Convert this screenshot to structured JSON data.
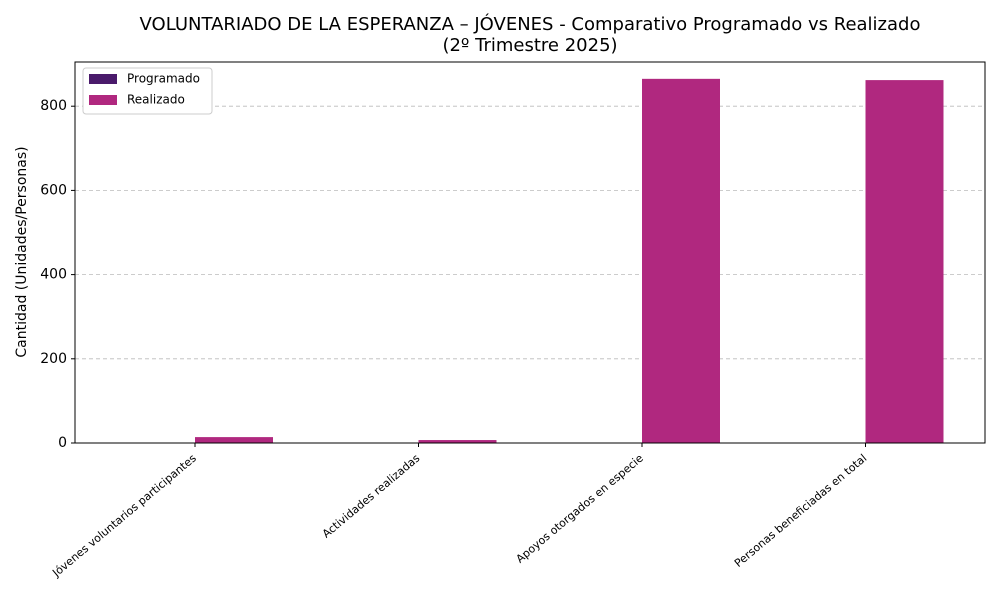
{
  "chart_data": {
    "type": "bar",
    "title": [
      "VOLUNTARIADO DE LA ESPERANZA – JÓVENES - Comparativo Programado vs Realizado",
      "(2º Trimestre 2025)"
    ],
    "y_label": "Cantidad (Unidades/Personas)",
    "categories": [
      "Jóvenes voluntarios participantes",
      "Actividades realizadas",
      "Apoyos otorgados en especie",
      "Personas beneficiadas en total"
    ],
    "series": [
      {
        "name": "Programado",
        "color": "#4a1a6b",
        "values": [
          0,
          0,
          0,
          0
        ]
      },
      {
        "name": "Realizado",
        "color": "#b0287f",
        "values": [
          14,
          7,
          865,
          862
        ]
      }
    ],
    "ylim": [
      0,
      905
    ],
    "yticks": [
      0,
      200,
      400,
      600,
      800
    ],
    "grid": true,
    "legend": "upper-left"
  }
}
